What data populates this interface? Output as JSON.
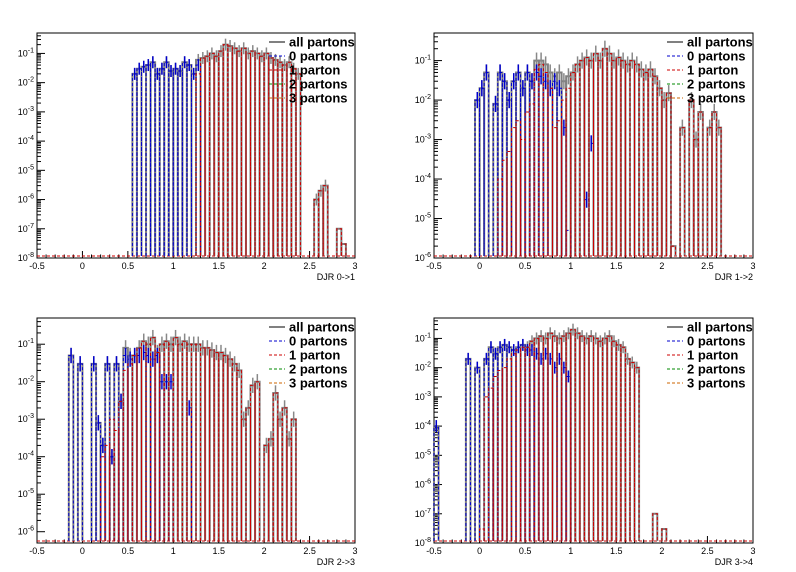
{
  "legend": {
    "entries": [
      {
        "label": "all partons",
        "color": "#808080",
        "dash": "solid"
      },
      {
        "label": "0 partons",
        "color": "#0000cc",
        "dash": "dashed"
      },
      {
        "label": "1 parton",
        "color": "#cc0000",
        "dash": "dashed"
      },
      {
        "label": "2 partons",
        "color": "#008800",
        "dash": "dashed"
      },
      {
        "label": "3 partons",
        "color": "#cc6600",
        "dash": "dashed"
      }
    ]
  },
  "chart_data": [
    {
      "type": "bar",
      "xlabel": "DJR 0->1",
      "xlim": [
        -0.5,
        3
      ],
      "ylim": [
        1e-08,
        0.5
      ],
      "ylog": true,
      "xticks": [
        "-0.5",
        "0",
        "0.5",
        "1",
        "1.5",
        "2",
        "2.5",
        "3"
      ],
      "yticks": [
        "10^-8",
        "10^-7",
        "10^-6",
        "10^-5",
        "10^-4",
        "10^-3",
        "10^-2",
        "10^-1"
      ],
      "bin_width": 0.05,
      "series": [
        {
          "name": "all partons",
          "x": [
            0.55,
            0.6,
            0.65,
            0.7,
            0.75,
            0.8,
            0.85,
            0.9,
            0.95,
            1.0,
            1.05,
            1.1,
            1.15,
            1.2,
            1.25,
            1.3,
            1.35,
            1.4,
            1.45,
            1.5,
            1.55,
            1.6,
            1.65,
            1.7,
            1.75,
            1.8,
            1.85,
            1.9,
            1.95,
            2.0,
            2.05,
            2.1,
            2.15,
            2.2,
            2.25,
            2.3,
            2.35,
            2.55,
            2.6,
            2.65,
            2.8,
            2.85
          ],
          "y": [
            0.02,
            0.03,
            0.035,
            0.04,
            0.05,
            0.02,
            0.03,
            0.05,
            0.025,
            0.03,
            0.025,
            0.05,
            0.04,
            0.02,
            0.06,
            0.07,
            0.08,
            0.1,
            0.08,
            0.12,
            0.2,
            0.18,
            0.15,
            0.12,
            0.15,
            0.1,
            0.12,
            0.1,
            0.08,
            0.1,
            0.07,
            0.06,
            0.05,
            0.04,
            0.05,
            0.03,
            0.02,
            1e-06,
            2e-06,
            3e-06,
            1e-07,
            3e-08
          ]
        },
        {
          "name": "0 partons",
          "x": [
            0.55,
            0.6,
            0.65,
            0.7,
            0.75,
            0.8,
            0.85,
            0.9,
            0.95,
            1.0,
            1.05,
            1.1,
            1.15,
            1.2,
            1.25
          ],
          "y": [
            0.02,
            0.03,
            0.035,
            0.04,
            0.05,
            0.02,
            0.03,
            0.05,
            0.025,
            0.03,
            0.025,
            0.05,
            0.04,
            0.02,
            0.04
          ]
        },
        {
          "name": "1 parton",
          "x": [
            1.25,
            1.3,
            1.35,
            1.4,
            1.45,
            1.5,
            1.55,
            1.6,
            1.65,
            1.7,
            1.75,
            1.8,
            1.85,
            1.9,
            1.95,
            2.0,
            2.05,
            2.1,
            2.15,
            2.2,
            2.25,
            2.3,
            2.35,
            2.55,
            2.6,
            2.65,
            2.8,
            2.85
          ],
          "y": [
            0.02,
            0.07,
            0.08,
            0.1,
            0.08,
            0.12,
            0.2,
            0.18,
            0.15,
            0.12,
            0.15,
            0.1,
            0.12,
            0.1,
            0.08,
            0.1,
            0.07,
            0.06,
            0.05,
            0.04,
            0.05,
            0.03,
            0.02,
            1e-06,
            2e-06,
            3e-06,
            1e-07,
            3e-08
          ]
        },
        {
          "name": "2 partons",
          "x": [],
          "y": []
        },
        {
          "name": "3 partons",
          "x": [],
          "y": []
        }
      ]
    },
    {
      "type": "bar",
      "xlabel": "DJR 1->2",
      "xlim": [
        -0.5,
        3
      ],
      "ylim": [
        1e-06,
        0.5
      ],
      "ylog": true,
      "xticks": [
        "-0.5",
        "0",
        "0.5",
        "1",
        "1.5",
        "2",
        "2.5",
        "3"
      ],
      "yticks": [
        "10^-6",
        "10^-5",
        "10^-4",
        "10^-3",
        "10^-2",
        "10^-1"
      ],
      "bin_width": 0.05,
      "series": [
        {
          "name": "all partons",
          "x": [
            -0.05,
            0.0,
            0.05,
            0.15,
            0.2,
            0.25,
            0.3,
            0.35,
            0.4,
            0.45,
            0.5,
            0.55,
            0.6,
            0.65,
            0.7,
            0.75,
            0.8,
            0.85,
            0.9,
            0.95,
            1.0,
            1.05,
            1.1,
            1.15,
            1.2,
            1.25,
            1.3,
            1.35,
            1.4,
            1.45,
            1.5,
            1.55,
            1.6,
            1.65,
            1.7,
            1.75,
            1.8,
            1.85,
            1.9,
            1.95,
            2.0,
            2.05,
            2.1,
            2.2,
            2.3,
            2.35,
            2.4,
            2.5,
            2.55,
            2.6
          ],
          "y": [
            0.01,
            0.02,
            0.05,
            0.008,
            0.05,
            0.03,
            0.01,
            0.03,
            0.05,
            0.02,
            0.05,
            0.03,
            0.1,
            0.1,
            0.08,
            0.05,
            0.04,
            0.05,
            0.03,
            0.04,
            0.05,
            0.08,
            0.1,
            0.12,
            0.1,
            0.15,
            0.1,
            0.2,
            0.15,
            0.1,
            0.12,
            0.1,
            0.08,
            0.1,
            0.08,
            0.06,
            0.05,
            0.06,
            0.04,
            0.02,
            0.01,
            0.015,
            2e-06,
            0.002,
            0.01,
            0.001,
            0.005,
            0.002,
            0.005,
            0.002
          ]
        },
        {
          "name": "0 partons",
          "x": [
            -0.05,
            0.0,
            0.05,
            0.15,
            0.2,
            0.25,
            0.3,
            0.35,
            0.4,
            0.45,
            0.5,
            0.55,
            0.6,
            0.65,
            0.7,
            0.75,
            0.8,
            0.85,
            0.9,
            0.95,
            1.15,
            1.2
          ],
          "y": [
            0.01,
            0.02,
            0.05,
            0.008,
            0.05,
            0.03,
            0.01,
            0.03,
            0.05,
            0.02,
            0.05,
            0.03,
            0.05,
            0.04,
            0.03,
            0.02,
            0.03,
            0.02,
            0.002,
            5e-06,
            3e-05,
            0.0008
          ]
        },
        {
          "name": "1 parton",
          "x": [
            0.2,
            0.25,
            0.3,
            0.35,
            0.4,
            0.45,
            0.5,
            0.55,
            0.6,
            0.65,
            0.7,
            0.75,
            0.8,
            0.85,
            0.9,
            0.95,
            1.0,
            1.05,
            1.1,
            1.15,
            1.2,
            1.25,
            1.3,
            1.35,
            1.4,
            1.45,
            1.5,
            1.55,
            1.6,
            1.65,
            1.7,
            1.75,
            1.8,
            1.85,
            1.9,
            1.95,
            2.0,
            2.05,
            2.1,
            2.2,
            2.3,
            2.35,
            2.4,
            2.5,
            2.55,
            2.6
          ],
          "y": [
            0.0001,
            0.0003,
            0.0005,
            0.002,
            0.003,
            0.001,
            0.005,
            0.008,
            0.06,
            0.08,
            0.05,
            0.02,
            0.002,
            0.003,
            0.01,
            0.02,
            0.05,
            0.08,
            0.1,
            0.12,
            0.1,
            0.15,
            0.1,
            0.2,
            0.15,
            0.1,
            0.12,
            0.1,
            0.08,
            0.1,
            0.08,
            0.06,
            0.05,
            0.06,
            0.04,
            0.02,
            0.01,
            0.015,
            2e-06,
            0.002,
            0.01,
            0.001,
            0.005,
            0.002,
            0.005,
            0.002
          ]
        },
        {
          "name": "2 partons",
          "x": [],
          "y": []
        },
        {
          "name": "3 partons",
          "x": [],
          "y": []
        }
      ]
    },
    {
      "type": "bar",
      "xlabel": "DJR 2->3",
      "xlim": [
        -0.5,
        3
      ],
      "ylim": [
        5e-07,
        0.5
      ],
      "ylog": true,
      "xticks": [
        "-0.5",
        "0",
        "0.5",
        "1",
        "1.5",
        "2",
        "2.5",
        "3"
      ],
      "yticks": [
        "10^-6",
        "10^-5",
        "10^-4",
        "10^-3",
        "10^-2",
        "10^-1"
      ],
      "bin_width": 0.05,
      "series": [
        {
          "name": "all partons",
          "x": [
            -0.15,
            -0.05,
            0.1,
            0.15,
            0.2,
            0.25,
            0.3,
            0.35,
            0.4,
            0.45,
            0.5,
            0.55,
            0.6,
            0.65,
            0.7,
            0.75,
            0.8,
            0.85,
            0.9,
            0.95,
            1.0,
            1.05,
            1.1,
            1.15,
            1.2,
            1.25,
            1.3,
            1.35,
            1.4,
            1.45,
            1.5,
            1.55,
            1.6,
            1.65,
            1.7,
            1.75,
            1.8,
            1.85,
            1.9,
            2.0,
            2.05,
            2.1,
            2.15,
            2.2,
            2.25,
            2.3
          ],
          "y": [
            0.05,
            0.03,
            0.03,
            0.0008,
            0.0002,
            0.03,
            0.0001,
            0.03,
            0.003,
            0.08,
            0.05,
            0.05,
            0.08,
            0.12,
            0.1,
            0.15,
            0.06,
            0.1,
            0.12,
            0.1,
            0.15,
            0.1,
            0.12,
            0.1,
            0.1,
            0.1,
            0.08,
            0.08,
            0.07,
            0.06,
            0.06,
            0.05,
            0.04,
            0.03,
            0.02,
            0.001,
            0.002,
            0.008,
            0.01,
            0.0002,
            0.0003,
            0.005,
            0.001,
            0.002,
            0.0003,
            0.001
          ]
        },
        {
          "name": "0 partons",
          "x": [
            -0.15,
            -0.05,
            0.1,
            0.15,
            0.2,
            0.25,
            0.3,
            0.35,
            0.4,
            0.45,
            0.5,
            0.55,
            0.6,
            0.65,
            0.7,
            0.75,
            0.8,
            0.85,
            0.9,
            0.95,
            1.15
          ],
          "y": [
            0.05,
            0.03,
            0.03,
            0.0008,
            0.0002,
            0.03,
            0.0001,
            0.03,
            0.003,
            0.05,
            0.04,
            0.05,
            0.05,
            0.06,
            0.05,
            0.04,
            0.05,
            0.01,
            0.01,
            0.01,
            0.002
          ]
        },
        {
          "name": "1 parton",
          "x": [
            0.2,
            0.25,
            0.3,
            0.35,
            0.4,
            0.45,
            0.5,
            0.55,
            0.6,
            0.65,
            0.7,
            0.75,
            0.8,
            0.85,
            0.9,
            0.95,
            1.0,
            1.05,
            1.1,
            1.15,
            1.2,
            1.25,
            1.3,
            1.35,
            1.4,
            1.45,
            1.5,
            1.55,
            1.6,
            1.65,
            1.7,
            1.75,
            1.8,
            1.85,
            1.9,
            2.0,
            2.05,
            2.1,
            2.15,
            2.2,
            2.25,
            2.3
          ],
          "y": [
            0.0001,
            0.0002,
            0.001,
            0.0005,
            0.003,
            0.02,
            0.03,
            0.05,
            0.08,
            0.12,
            0.1,
            0.15,
            0.06,
            0.1,
            0.12,
            0.1,
            0.15,
            0.1,
            0.12,
            0.1,
            0.1,
            0.1,
            0.08,
            0.08,
            0.07,
            0.06,
            0.06,
            0.05,
            0.04,
            0.03,
            0.02,
            0.001,
            0.002,
            0.008,
            0.01,
            0.0002,
            0.0003,
            0.005,
            0.001,
            0.002,
            0.0003,
            0.001
          ]
        },
        {
          "name": "2 partons",
          "x": [],
          "y": []
        },
        {
          "name": "3 partons",
          "x": [],
          "y": []
        }
      ]
    },
    {
      "type": "bar",
      "xlabel": "DJR 3->4",
      "xlim": [
        -0.5,
        3
      ],
      "ylim": [
        1e-08,
        0.5
      ],
      "ylog": true,
      "xticks": [
        "-0.5",
        "0",
        "0.5",
        "1",
        "1.5",
        "2",
        "2.5",
        "3"
      ],
      "yticks": [
        "10^-8",
        "10^-7",
        "10^-6",
        "10^-5",
        "10^-4",
        "10^-3",
        "10^-2",
        "10^-1"
      ],
      "bin_width": 0.05,
      "series": [
        {
          "name": "all partons",
          "x": [
            -0.5,
            -0.15,
            -0.05,
            0.05,
            0.1,
            0.15,
            0.2,
            0.25,
            0.3,
            0.35,
            0.4,
            0.45,
            0.5,
            0.55,
            0.6,
            0.65,
            0.7,
            0.75,
            0.8,
            0.85,
            0.9,
            0.95,
            1.0,
            1.05,
            1.1,
            1.15,
            1.2,
            1.25,
            1.3,
            1.35,
            1.4,
            1.45,
            1.5,
            1.55,
            1.6,
            1.65,
            1.7,
            1.9,
            2.0
          ],
          "y": [
            0.0001,
            0.02,
            0.01,
            0.02,
            0.05,
            0.03,
            0.05,
            0.06,
            0.05,
            0.04,
            0.05,
            0.06,
            0.05,
            0.08,
            0.1,
            0.12,
            0.1,
            0.15,
            0.12,
            0.1,
            0.12,
            0.15,
            0.2,
            0.15,
            0.12,
            0.1,
            0.12,
            0.1,
            0.08,
            0.1,
            0.12,
            0.08,
            0.06,
            0.05,
            0.02,
            0.015,
            0.01,
            1e-07,
            3e-08
          ]
        },
        {
          "name": "0 partons",
          "x": [
            -0.5,
            -0.15,
            -0.05,
            0.05,
            0.1,
            0.15,
            0.2,
            0.25,
            0.3,
            0.35,
            0.4,
            0.45,
            0.5,
            0.55,
            0.6,
            0.65,
            0.7,
            0.75,
            0.8,
            0.85,
            0.9,
            0.95
          ],
          "y": [
            0.0001,
            0.02,
            0.01,
            0.02,
            0.05,
            0.03,
            0.05,
            0.06,
            0.05,
            0.04,
            0.05,
            0.06,
            0.04,
            0.04,
            0.03,
            0.02,
            0.03,
            0.02,
            0.01,
            0.02,
            0.01,
            0.005
          ]
        },
        {
          "name": "1 parton",
          "x": [
            0.0,
            0.05,
            0.1,
            0.15,
            0.2,
            0.25,
            0.3,
            0.35,
            0.4,
            0.45,
            0.5,
            0.55,
            0.6,
            0.65,
            0.7,
            0.75,
            0.8,
            0.85,
            0.9,
            0.95,
            1.0,
            1.05,
            1.1,
            1.15,
            1.2,
            1.25,
            1.3,
            1.35,
            1.4,
            1.45,
            1.5,
            1.55,
            1.6,
            1.65,
            1.7,
            1.9,
            2.0
          ],
          "y": [
            3e-08,
            0.001,
            0.002,
            0.005,
            0.008,
            0.01,
            0.02,
            0.03,
            0.04,
            0.05,
            0.05,
            0.08,
            0.1,
            0.12,
            0.1,
            0.15,
            0.12,
            0.1,
            0.12,
            0.15,
            0.2,
            0.15,
            0.12,
            0.1,
            0.12,
            0.1,
            0.08,
            0.1,
            0.12,
            0.08,
            0.06,
            0.05,
            0.02,
            0.015,
            0.01,
            1e-07,
            3e-08
          ]
        },
        {
          "name": "2 partons",
          "x": [],
          "y": []
        },
        {
          "name": "3 partons",
          "x": [],
          "y": []
        }
      ]
    }
  ]
}
